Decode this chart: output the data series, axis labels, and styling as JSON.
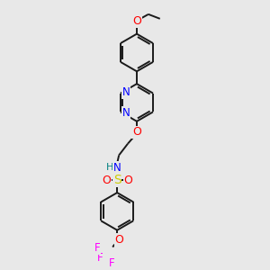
{
  "background_color": "#e8e8e8",
  "bond_color": "#1a1a1a",
  "atom_colors": {
    "O": "#ff0000",
    "N": "#0000ff",
    "S": "#cccc00",
    "F": "#ff00ff",
    "HN": "#008080",
    "C": "#1a1a1a"
  },
  "figsize": [
    3.0,
    3.0
  ],
  "dpi": 100,
  "lw": 1.4
}
